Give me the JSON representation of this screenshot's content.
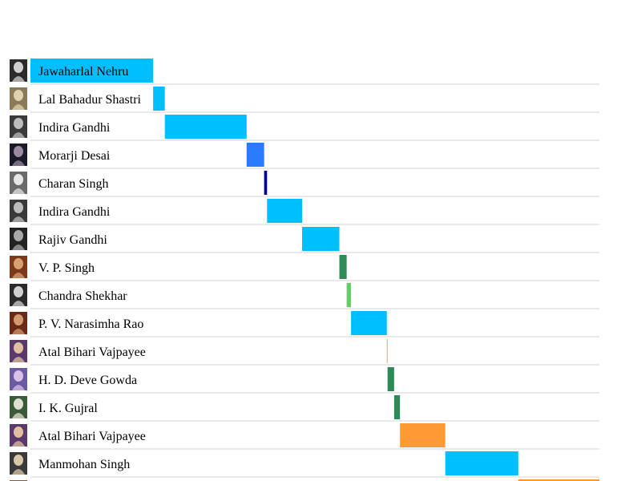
{
  "chart_data": {
    "type": "bar",
    "subtype": "gantt-timeline",
    "title": "",
    "xlabel": "",
    "ylabel": "",
    "time_unit": "year",
    "xlim": [
      1947.6,
      2025.5
    ],
    "grid": "horizontal row separators",
    "legend": "none",
    "rows": [
      {
        "label": "Jawaharlal Nehru",
        "start": 1947.6,
        "end": 1964.4,
        "color": "#00BFFF",
        "portrait": "portrait-nehru"
      },
      {
        "label": "Lal Bahadur Shastri",
        "start": 1964.4,
        "end": 1966.0,
        "color": "#00BFFF",
        "portrait": "portrait-shastri"
      },
      {
        "label": "Indira Gandhi",
        "start": 1966.0,
        "end": 1977.2,
        "color": "#00BFFF",
        "portrait": "portrait-indira"
      },
      {
        "label": "Morarji Desai",
        "start": 1977.2,
        "end": 1979.6,
        "color": "#2B7BFF",
        "portrait": "portrait-desai"
      },
      {
        "label": "Charan Singh",
        "start": 1979.6,
        "end": 1980.0,
        "color": "#00008B",
        "portrait": "portrait-charan"
      },
      {
        "label": "Indira Gandhi",
        "start": 1980.0,
        "end": 1984.8,
        "color": "#00BFFF",
        "portrait": "portrait-indira"
      },
      {
        "label": "Rajiv Gandhi",
        "start": 1984.8,
        "end": 1989.9,
        "color": "#00BFFF",
        "portrait": "portrait-rajiv"
      },
      {
        "label": "V. P. Singh",
        "start": 1989.9,
        "end": 1990.9,
        "color": "#2E8B57",
        "portrait": "portrait-vpsingh"
      },
      {
        "label": "Chandra Shekhar",
        "start": 1990.9,
        "end": 1991.5,
        "color": "#66CC66",
        "portrait": "portrait-chandra"
      },
      {
        "label": "P. V. Narasimha Rao",
        "start": 1991.5,
        "end": 1996.4,
        "color": "#00BFFF",
        "portrait": "portrait-rao"
      },
      {
        "label": "Atal Bihari Vajpayee",
        "start": 1996.4,
        "end": 1996.5,
        "color": "#F4A460",
        "portrait": "portrait-vajpayee"
      },
      {
        "label": "H. D. Deve Gowda",
        "start": 1996.5,
        "end": 1997.4,
        "color": "#2E8B57",
        "portrait": "portrait-gowda"
      },
      {
        "label": "I. K. Gujral",
        "start": 1997.4,
        "end": 1998.2,
        "color": "#2E8B57",
        "portrait": "portrait-gujral"
      },
      {
        "label": "Atal Bihari Vajpayee",
        "start": 1998.2,
        "end": 2004.4,
        "color": "#FF9933",
        "portrait": "portrait-vajpayee"
      },
      {
        "label": "Manmohan Singh",
        "start": 2004.4,
        "end": 2014.4,
        "color": "#00BFFF",
        "portrait": "portrait-manmohan"
      },
      {
        "label": "",
        "start": 2014.4,
        "end": 2025.5,
        "color": "#FF9933",
        "portrait": "portrait-partial"
      }
    ]
  },
  "colors": {
    "background": "#FFFFFF",
    "separator": "#D3D3D3",
    "label_text": "#000000"
  }
}
